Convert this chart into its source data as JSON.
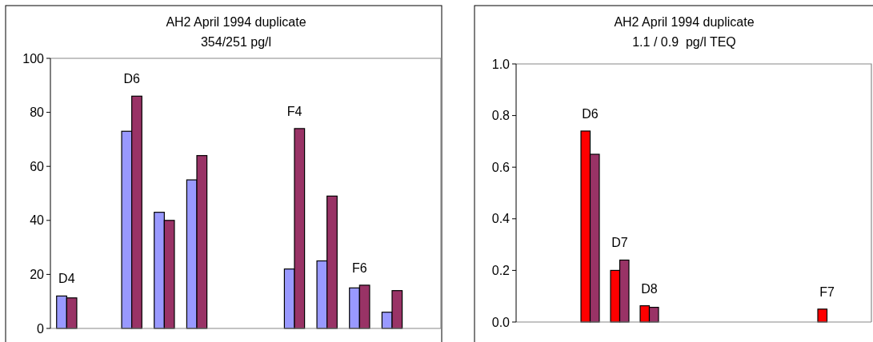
{
  "chart_data": [
    {
      "type": "bar",
      "title": "AH2 April 1994 duplicate",
      "subtitle": "354/251 pg/l",
      "categories": [
        "D4",
        null,
        "D6",
        null,
        null,
        null,
        null,
        "F4",
        null,
        "F6",
        null,
        null
      ],
      "series": [
        {
          "color": "#9999ff",
          "values": [
            12,
            null,
            73,
            43,
            55,
            null,
            null,
            22,
            25,
            15,
            6,
            null
          ]
        },
        {
          "color": "#993366",
          "values": [
            11.3,
            null,
            86,
            40,
            64,
            null,
            null,
            74,
            49,
            16,
            14,
            null
          ]
        }
      ],
      "ylim": [
        0,
        100
      ],
      "yticks": [
        0,
        20,
        40,
        60,
        80,
        100
      ],
      "grid": false
    },
    {
      "type": "bar",
      "title": "AH2 April 1994 duplicate",
      "subtitle": "1.1 / 0.9  pg/l TEQ",
      "categories": [
        null,
        null,
        "D6",
        "D7",
        "D8",
        null,
        null,
        null,
        null,
        null,
        "F7",
        null
      ],
      "series": [
        {
          "color": "#ff0000",
          "values": [
            null,
            null,
            0.74,
            0.2,
            0.063,
            null,
            null,
            null,
            null,
            null,
            0.05,
            null
          ]
        },
        {
          "color": "#993366",
          "values": [
            null,
            null,
            0.65,
            0.24,
            0.057,
            null,
            null,
            null,
            null,
            null,
            null,
            null
          ]
        }
      ],
      "ylim": [
        0,
        1
      ],
      "yticks": [
        {
          "value": 0,
          "label": "0.0"
        },
        {
          "value": 0.2,
          "label": "0.2"
        },
        {
          "value": 0.4,
          "label": "0.4"
        },
        {
          "value": 0.6,
          "label": "0.6"
        },
        {
          "value": 0.8,
          "label": "0.8"
        },
        {
          "value": 1,
          "label": "1.0"
        }
      ],
      "grid": false
    }
  ]
}
